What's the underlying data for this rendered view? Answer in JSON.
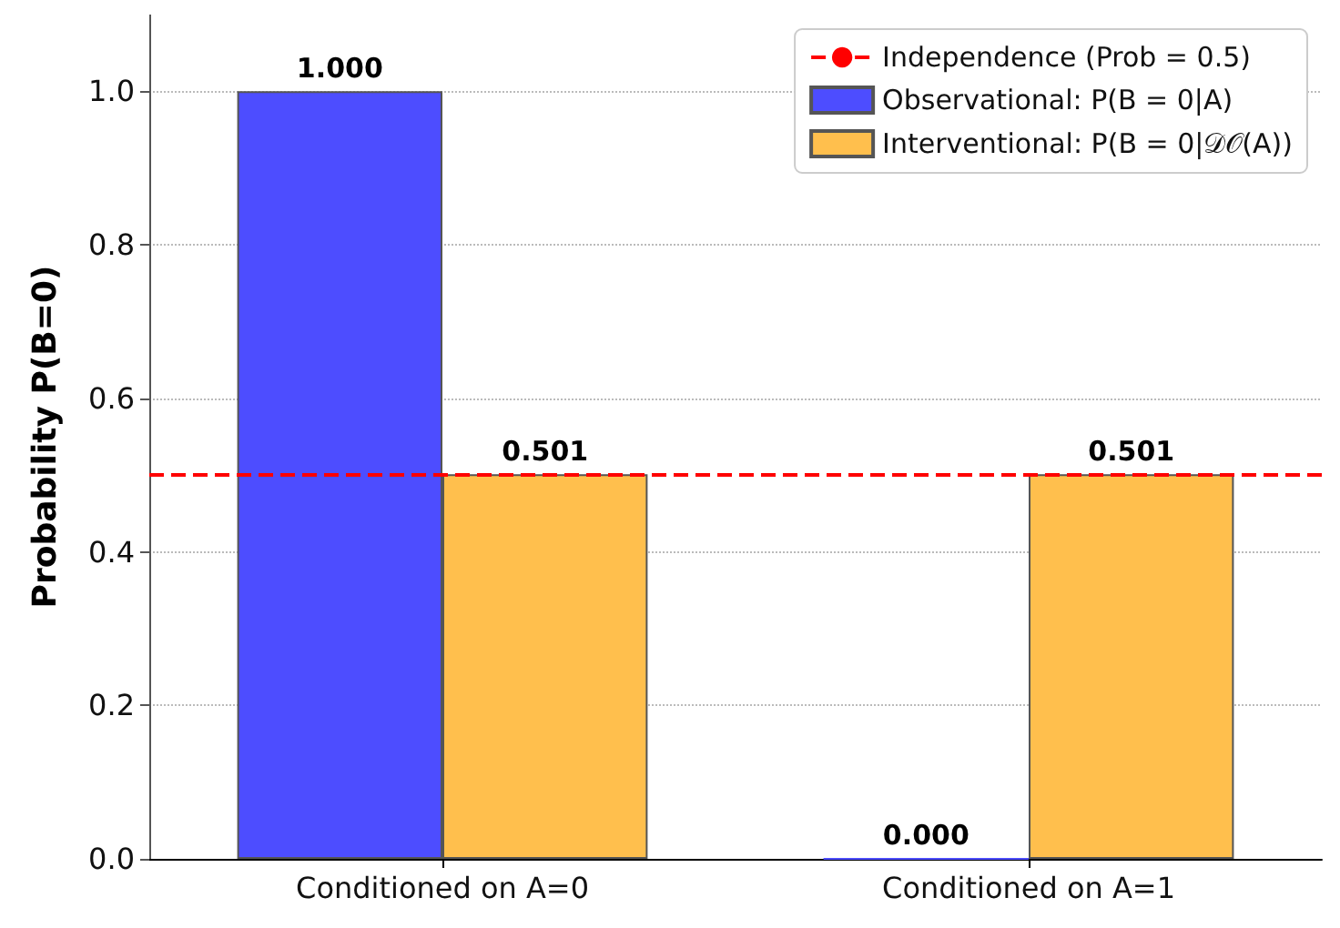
{
  "chart_data": {
    "type": "bar",
    "ylabel": "Probability P(B=0)",
    "categories": [
      "Conditioned on A=0",
      "Conditioned on A=1"
    ],
    "series": [
      {
        "name": "Observational: P(B = 0|A)",
        "color": "#4d4dff",
        "values": [
          1.0,
          0.0
        ],
        "value_labels": [
          "1.000",
          "0.000"
        ]
      },
      {
        "name": "Interventional: P(B = 0|𝒟𝒪(A))",
        "color": "#ffbf4d",
        "values": [
          0.501,
          0.501
        ],
        "value_labels": [
          "0.501",
          "0.501"
        ]
      }
    ],
    "ylim": [
      0,
      1.1
    ],
    "yticks": [
      {
        "value": 0,
        "label": "0.0"
      },
      0.2,
      0.4,
      0.6,
      0.8,
      {
        "value": 1,
        "label": "1.0"
      }
    ],
    "ref_lines": [
      {
        "axis": "y",
        "value": 0.5,
        "label": "Independence (Prob = 0.5)",
        "color": "#ff0000",
        "line_style": "dashed"
      }
    ],
    "grid": "y",
    "legend": "top right"
  }
}
